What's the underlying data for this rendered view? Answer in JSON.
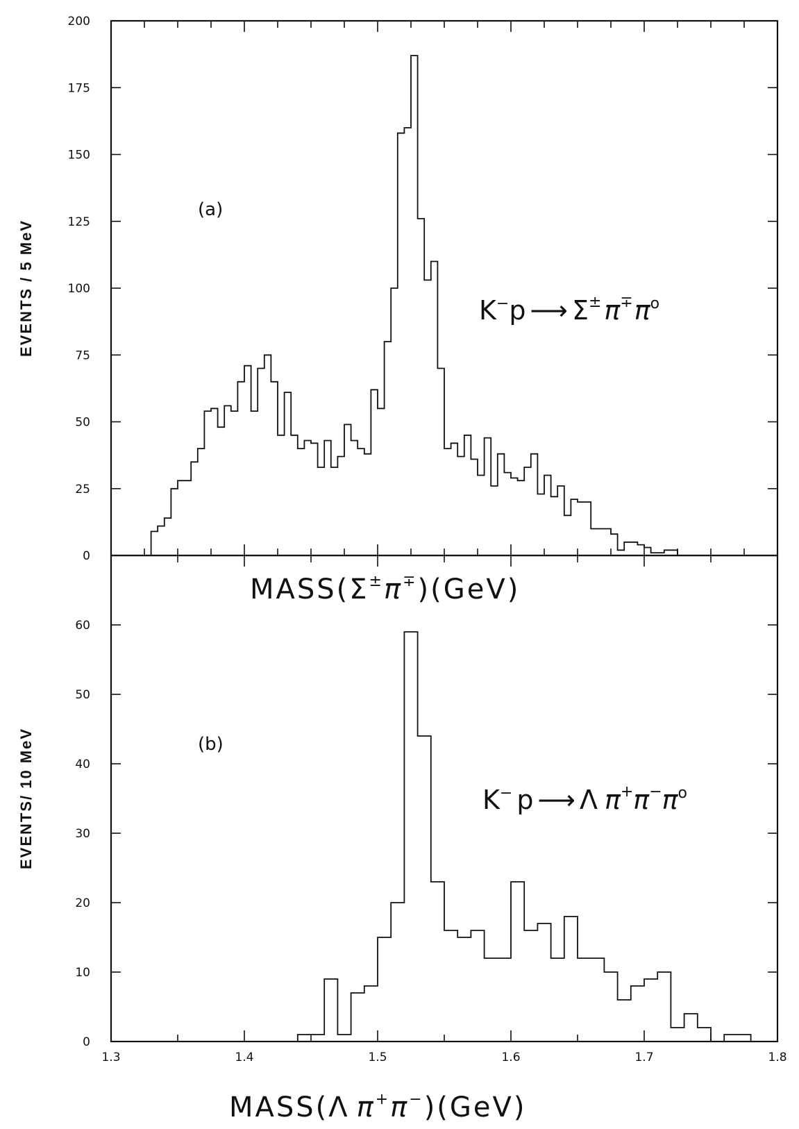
{
  "chart_data": [
    {
      "type": "bar",
      "histogram": true,
      "panel_label": "(a)",
      "reaction": {
        "a": "K",
        "a_sup": "−",
        "b": "p",
        "arrow": "⟶",
        "c": "Σ",
        "c_sup": "±",
        "d": "π",
        "d_sup": "∓",
        "e": "π",
        "e_sup": "o"
      },
      "ylabel": "EVENTS / 5 MeV",
      "xlabel": {
        "pre": "MASS(",
        "s": "Σ",
        "s_sup": "±",
        "p": "π",
        "p_sup": "∓",
        "post": ")(GeV)"
      },
      "xlim": [
        1.3,
        1.8
      ],
      "ylim": [
        0,
        200
      ],
      "yticks": [
        "0",
        "25",
        "50",
        "75",
        "100",
        "125",
        "150",
        "175",
        "200"
      ],
      "bin_start": 1.33,
      "bin_width": 0.005,
      "values": [
        9,
        11,
        14,
        25,
        28,
        28,
        35,
        40,
        54,
        55,
        48,
        56,
        54,
        65,
        71,
        54,
        70,
        75,
        65,
        45,
        61,
        45,
        40,
        43,
        42,
        33,
        43,
        33,
        37,
        49,
        43,
        40,
        38,
        62,
        55,
        80,
        100,
        158,
        160,
        187,
        126,
        103,
        110,
        70,
        40,
        42,
        37,
        45,
        36,
        30,
        44,
        26,
        38,
        31,
        29,
        28,
        33,
        38,
        23,
        30,
        22,
        26,
        15,
        21,
        20,
        20,
        10,
        10,
        10,
        8,
        2,
        5,
        5,
        4,
        3,
        1,
        1,
        2,
        2
      ],
      "grid": false
    },
    {
      "type": "bar",
      "histogram": true,
      "panel_label": "(b)",
      "reaction": {
        "a": "K",
        "a_sup": "−",
        "b": "p",
        "arrow": "⟶",
        "c": "Λ",
        "d": "π",
        "d_sup": "+",
        "e": "π",
        "e_sup": "−",
        "f": "π",
        "f_sup": "o"
      },
      "ylabel": "EVENTS/ 10 MeV",
      "xlabel": {
        "pre": "MASS(",
        "s": "Λ",
        "p1": "π",
        "p1_sup": "+",
        "p2": "π",
        "p2_sup": "−",
        "post": ")(GeV)"
      },
      "xlim": [
        1.3,
        1.8
      ],
      "ylim": [
        0,
        70
      ],
      "yticks": [
        "0",
        "10",
        "20",
        "30",
        "40",
        "50",
        "60"
      ],
      "xticks": [
        "1.3",
        "1.4",
        "1.5",
        "1.6",
        "1.7",
        "1.8"
      ],
      "bin_start": 1.44,
      "bin_width": 0.01,
      "values": [
        1,
        1,
        9,
        1,
        7,
        8,
        15,
        20,
        59,
        44,
        23,
        16,
        15,
        16,
        12,
        12,
        23,
        16,
        17,
        12,
        18,
        12,
        12,
        10,
        6,
        8,
        9,
        10,
        2,
        4,
        2,
        0,
        1,
        1
      ],
      "grid": false
    }
  ]
}
